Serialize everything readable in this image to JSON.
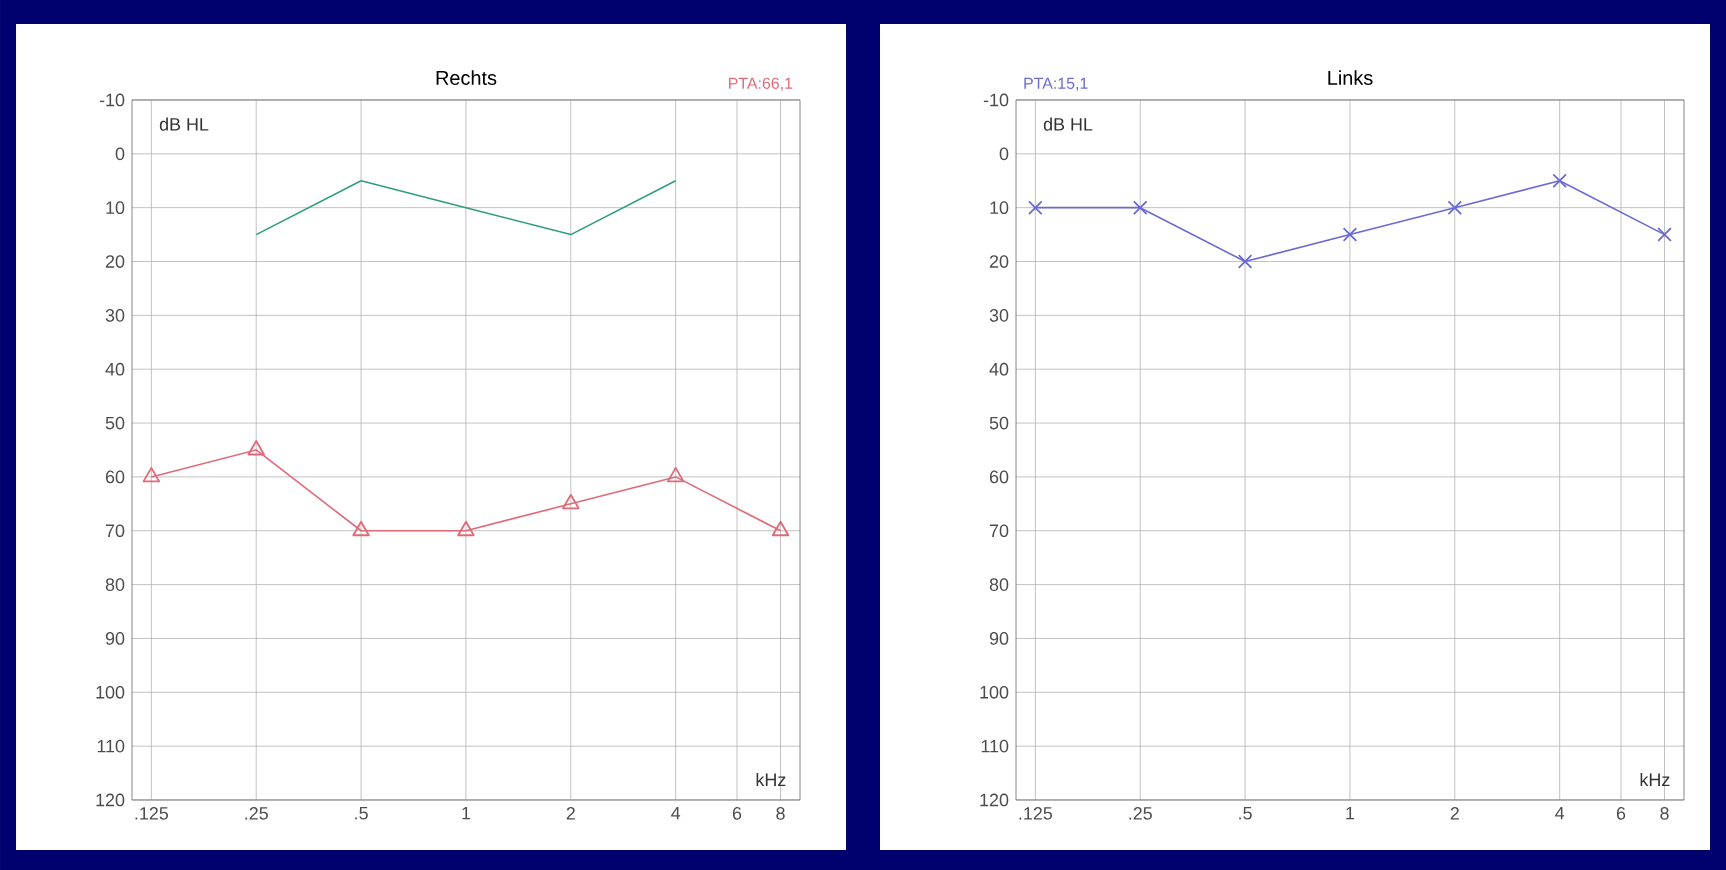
{
  "chart_data": [
    {
      "type": "line",
      "title": "Rechts",
      "xlabel": "kHz",
      "ylabel": "dB HL",
      "log": "x",
      "grid": true,
      "line_style": "solid",
      "x": [
        0.125,
        0.25,
        0.5,
        1,
        2,
        4,
        8
      ],
      "series": [
        {
          "color": "#e06a78",
          "marker": "triangle",
          "values": [
            60,
            55,
            70,
            70,
            65,
            60,
            70
          ]
        },
        {
          "color": "#2f9c82",
          "marker": "none",
          "x": [
            0.25,
            0.5,
            1,
            2,
            4
          ],
          "values": [
            15,
            5,
            10,
            15,
            5
          ]
        }
      ],
      "xlim": [
        0.11,
        9.1
      ],
      "ylim": [
        120,
        -10
      ],
      "xticks": [
        {
          "value": 0.125,
          "label": ".125"
        },
        {
          "value": 0.25,
          "label": ".25"
        },
        {
          "value": 0.5,
          "label": ".5"
        },
        1,
        2,
        4,
        6,
        8
      ],
      "yticks": [
        -10,
        0,
        10,
        20,
        30,
        40,
        50,
        60,
        70,
        80,
        90,
        100,
        110,
        120
      ],
      "annotations": [
        "PTA:66,1"
      ]
    },
    {
      "type": "line",
      "title": "Links",
      "xlabel": "kHz",
      "ylabel": "dB HL",
      "log": "x",
      "grid": true,
      "line_style": "solid",
      "x": [
        0.125,
        0.25,
        0.5,
        1,
        2,
        4,
        8
      ],
      "series": [
        {
          "color": "#6a6ad2",
          "marker": "cross",
          "values": [
            10,
            10,
            20,
            15,
            10,
            5,
            15
          ]
        }
      ],
      "xlim": [
        0.11,
        9.1
      ],
      "ylim": [
        120,
        -10
      ],
      "xticks": [
        {
          "value": 0.125,
          "label": ".125"
        },
        {
          "value": 0.25,
          "label": ".25"
        },
        {
          "value": 0.5,
          "label": ".5"
        },
        1,
        2,
        4,
        6,
        8
      ],
      "yticks": [
        -10,
        0,
        10,
        20,
        30,
        40,
        50,
        60,
        70,
        80,
        90,
        100,
        110,
        120
      ],
      "annotations": [
        "PTA:15,1"
      ]
    }
  ]
}
